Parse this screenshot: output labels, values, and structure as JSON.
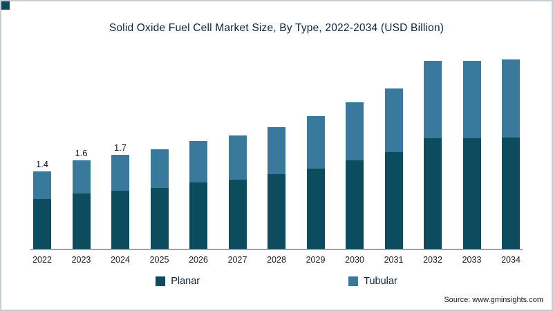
{
  "frame": {
    "accent_color": "#0d4b5e",
    "border_color": "#c3ced4"
  },
  "title": "Solid Oxide Fuel Cell Market Size, By Type, 2022-2034 (USD Billion)",
  "source": "Source: www.gminsights.com",
  "legend": [
    {
      "label": "Planar",
      "color": "#0d4b5e"
    },
    {
      "label": "Tubular",
      "color": "#38799c"
    }
  ],
  "chart_data": {
    "type": "bar",
    "stacked": true,
    "title": "Solid Oxide Fuel Cell Market Size, By Type, 2022-2034 (USD Billion)",
    "unit": "USD Billion",
    "xlabel": "",
    "ylabel": "",
    "grid": false,
    "legend_position": "bottom",
    "ylim": [
      0,
      3.6
    ],
    "categories": [
      "2022",
      "2023",
      "2024",
      "2025",
      "2026",
      "2027",
      "2028",
      "2029",
      "2030",
      "2031",
      "2032",
      "2033",
      "2034"
    ],
    "series": [
      {
        "name": "Planar",
        "color": "#0d4b5e",
        "values": [
          0.9,
          1.0,
          1.05,
          1.1,
          1.2,
          1.25,
          1.35,
          1.45,
          1.6,
          1.75,
          2.0,
          2.0,
          2.05
        ]
      },
      {
        "name": "Tubular",
        "color": "#38799c",
        "values": [
          0.5,
          0.6,
          0.65,
          0.7,
          0.75,
          0.8,
          0.85,
          0.95,
          1.05,
          1.15,
          1.4,
          1.4,
          1.45
        ]
      }
    ],
    "total_labels": [
      "1.4",
      "1.6",
      "1.7",
      "",
      "",
      "",
      "",
      "",
      "",
      "",
      "",
      "",
      ""
    ]
  }
}
